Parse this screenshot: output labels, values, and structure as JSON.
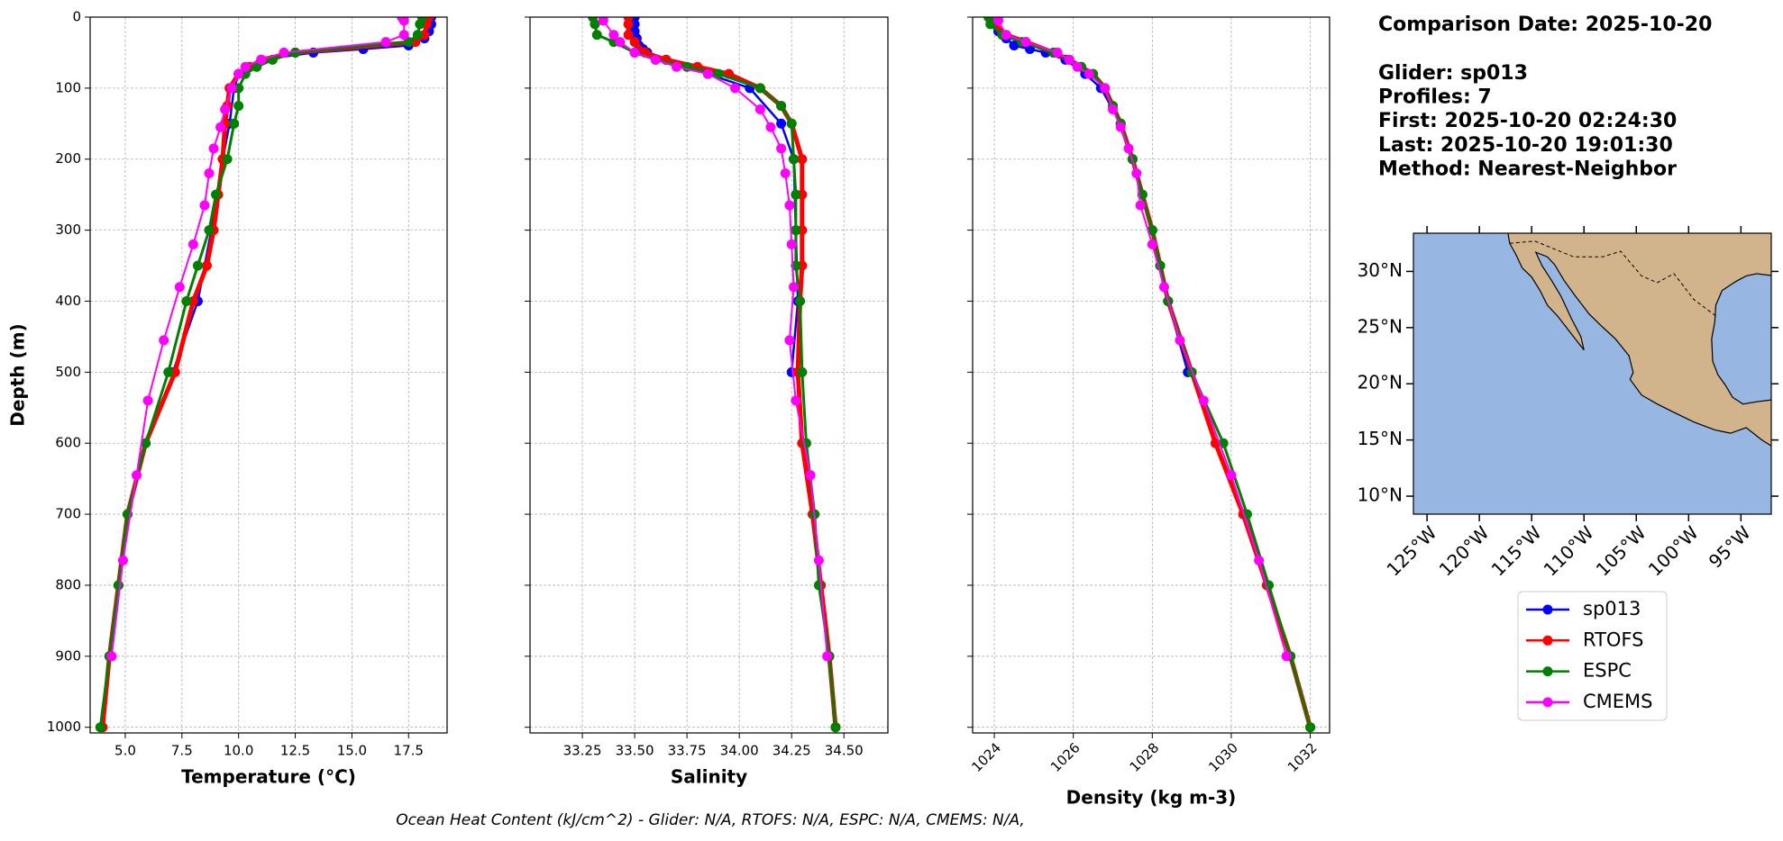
{
  "chart_data": [
    {
      "type": "line",
      "xlabel": "Temperature (°C)",
      "ylabel": "Depth (m)",
      "xlim": [
        3.45,
        19.2
      ],
      "ylim": [
        1008,
        0
      ],
      "grid": true,
      "xticks": [
        {
          "value": 5,
          "label": "5.0"
        },
        7.5,
        {
          "value": 10,
          "label": "10.0"
        },
        12.5,
        {
          "value": 15,
          "label": "15.0"
        },
        17.5
      ],
      "yticks": [
        0,
        100,
        200,
        300,
        400,
        500,
        600,
        700,
        800,
        900,
        1000
      ],
      "series": [
        {
          "name": "sp013",
          "color": "#0000ff",
          "depth": [
            0,
            10,
            20,
            30,
            40,
            45,
            50,
            60,
            80,
            100,
            150,
            200,
            300,
            400,
            500
          ],
          "values": [
            18.5,
            18.5,
            18.4,
            18.2,
            17.5,
            15.5,
            13.3,
            11.0,
            10.0,
            9.8,
            9.6,
            9.3,
            8.8,
            8.2,
            7.1
          ]
        },
        {
          "name": "RTOFS",
          "color": "#ff0000",
          "depth": [
            0,
            10,
            25,
            35,
            50,
            60,
            70,
            80,
            100,
            125,
            150,
            200,
            250,
            300,
            350,
            400,
            500,
            600,
            700,
            800,
            900,
            1000
          ],
          "values": [
            18.4,
            18.3,
            18.2,
            17.8,
            12.5,
            11.0,
            10.5,
            10.0,
            9.6,
            9.5,
            9.4,
            9.3,
            9.1,
            8.9,
            8.6,
            8.0,
            7.2,
            5.9,
            5.1,
            4.7,
            4.3,
            4.0
          ]
        },
        {
          "name": "ESPC",
          "color": "#008000",
          "depth": [
            0,
            10,
            25,
            35,
            50,
            60,
            70,
            80,
            100,
            125,
            150,
            200,
            250,
            300,
            350,
            400,
            500,
            600,
            700,
            800,
            900,
            1000
          ],
          "values": [
            18.1,
            18.0,
            17.9,
            17.5,
            12.5,
            11.5,
            10.8,
            10.3,
            10.0,
            10.0,
            9.8,
            9.5,
            9.0,
            8.7,
            8.2,
            7.7,
            6.9,
            5.9,
            5.1,
            4.7,
            4.3,
            3.9
          ]
        },
        {
          "name": "CMEMS",
          "color": "#ff00ff",
          "depth": [
            0,
            5,
            25,
            35,
            50,
            60,
            70,
            80,
            100,
            130,
            155,
            185,
            220,
            265,
            320,
            380,
            455,
            540,
            645,
            765,
            900
          ],
          "values": [
            17.2,
            17.3,
            17.3,
            16.5,
            12.0,
            11.0,
            10.3,
            10.0,
            9.7,
            9.4,
            9.2,
            8.9,
            8.7,
            8.5,
            8.0,
            7.4,
            6.7,
            6.0,
            5.5,
            4.9,
            4.4
          ]
        }
      ]
    },
    {
      "type": "line",
      "xlabel": "Salinity",
      "xlim": [
        33.0,
        34.71
      ],
      "ylim": [
        1008,
        0
      ],
      "grid": true,
      "xticks": [
        33.25,
        {
          "value": 33.5,
          "label": "33.50"
        },
        33.75,
        {
          "value": 34,
          "label": "34.00"
        },
        34.25,
        {
          "value": 34.5,
          "label": "34.50"
        }
      ],
      "series": [
        {
          "color": "#0000ff",
          "depth": [
            0,
            10,
            20,
            30,
            40,
            45,
            50,
            60,
            80,
            100,
            150,
            200,
            300,
            400,
            500
          ],
          "values": [
            33.5,
            33.5,
            33.5,
            33.51,
            33.52,
            33.54,
            33.56,
            33.65,
            33.85,
            34.05,
            34.2,
            34.26,
            34.27,
            34.28,
            34.25
          ]
        },
        {
          "color": "#ff0000",
          "depth": [
            0,
            10,
            25,
            35,
            50,
            60,
            70,
            80,
            100,
            125,
            150,
            200,
            250,
            300,
            350,
            400,
            500,
            600,
            700,
            800,
            900,
            1000
          ],
          "values": [
            33.47,
            33.47,
            33.47,
            33.5,
            33.55,
            33.65,
            33.8,
            33.95,
            34.1,
            34.2,
            34.25,
            34.3,
            34.3,
            34.3,
            34.3,
            34.29,
            34.28,
            34.3,
            34.35,
            34.39,
            34.43,
            34.46
          ]
        },
        {
          "color": "#008000",
          "depth": [
            0,
            10,
            25,
            35,
            50,
            60,
            70,
            80,
            100,
            125,
            150,
            200,
            250,
            300,
            350,
            400,
            500,
            600,
            700,
            800,
            900,
            1000
          ],
          "values": [
            33.3,
            33.31,
            33.32,
            33.4,
            33.5,
            33.6,
            33.75,
            33.9,
            34.1,
            34.2,
            34.25,
            34.26,
            34.27,
            34.27,
            34.27,
            34.29,
            34.3,
            34.32,
            34.36,
            34.38,
            34.43,
            34.46
          ]
        },
        {
          "color": "#ff00ff",
          "depth": [
            0,
            5,
            25,
            35,
            50,
            60,
            70,
            80,
            100,
            130,
            155,
            185,
            220,
            265,
            320,
            380,
            455,
            540,
            645,
            765,
            900
          ],
          "values": [
            33.35,
            33.35,
            33.4,
            33.43,
            33.5,
            33.6,
            33.7,
            33.85,
            33.98,
            34.1,
            34.15,
            34.2,
            34.22,
            34.24,
            34.25,
            34.26,
            34.24,
            34.27,
            34.34,
            34.38,
            34.42
          ]
        }
      ]
    },
    {
      "type": "line",
      "xlabel": "Density (kg m-3)",
      "xlim": [
        1023.45,
        1032.49
      ],
      "ylim": [
        1008,
        0
      ],
      "grid": true,
      "xtick_rotation": 45,
      "xticks": [
        1024,
        1026,
        1028,
        1030,
        1032
      ],
      "series": [
        {
          "color": "#0000ff",
          "depth": [
            0,
            10,
            20,
            30,
            40,
            45,
            50,
            60,
            80,
            100,
            150,
            200,
            300,
            400,
            500
          ],
          "values": [
            1024.0,
            1024.0,
            1024.1,
            1024.3,
            1024.5,
            1024.9,
            1025.3,
            1025.8,
            1026.3,
            1026.7,
            1027.2,
            1027.5,
            1028.0,
            1028.4,
            1028.9
          ]
        },
        {
          "color": "#ff0000",
          "depth": [
            0,
            10,
            25,
            35,
            50,
            60,
            70,
            80,
            100,
            125,
            150,
            200,
            250,
            300,
            350,
            400,
            500,
            600,
            700,
            800,
            900,
            1000
          ],
          "values": [
            1023.95,
            1024.0,
            1024.3,
            1024.8,
            1025.5,
            1025.9,
            1026.2,
            1026.5,
            1026.8,
            1027.0,
            1027.2,
            1027.5,
            1027.75,
            1028.0,
            1028.2,
            1028.4,
            1029.0,
            1029.6,
            1030.3,
            1030.9,
            1031.5,
            1032.0
          ]
        },
        {
          "color": "#008000",
          "depth": [
            0,
            10,
            25,
            35,
            50,
            60,
            70,
            80,
            100,
            125,
            150,
            200,
            250,
            300,
            350,
            400,
            500,
            600,
            700,
            800,
            900,
            1000
          ],
          "values": [
            1023.85,
            1023.9,
            1024.2,
            1024.7,
            1025.5,
            1025.9,
            1026.2,
            1026.5,
            1026.8,
            1027.0,
            1027.2,
            1027.5,
            1027.75,
            1028.0,
            1028.2,
            1028.4,
            1029.0,
            1029.8,
            1030.4,
            1030.95,
            1031.5,
            1032.0
          ]
        },
        {
          "color": "#ff00ff",
          "depth": [
            0,
            5,
            25,
            35,
            50,
            60,
            70,
            80,
            100,
            130,
            155,
            185,
            220,
            265,
            320,
            380,
            455,
            540,
            645,
            765,
            900
          ],
          "values": [
            1024.1,
            1024.1,
            1024.3,
            1024.8,
            1025.6,
            1025.9,
            1026.1,
            1026.4,
            1026.8,
            1027.0,
            1027.2,
            1027.4,
            1027.6,
            1027.7,
            1028.0,
            1028.3,
            1028.7,
            1029.3,
            1030.0,
            1030.7,
            1031.4
          ]
        }
      ]
    },
    {
      "type": "map",
      "xlim": [
        -126.3,
        -92.1
      ],
      "ylim": [
        8.4,
        33.4
      ],
      "xtick_rotation": 45,
      "ocean_color": "#97b6e1",
      "land_color": "#d2b48c",
      "xticks": [
        {
          "value": -125,
          "label": "125°W"
        },
        {
          "value": -120,
          "label": "120°W"
        },
        {
          "value": -115,
          "label": "115°W"
        },
        {
          "value": -110,
          "label": "110°W"
        },
        {
          "value": -105,
          "label": "105°W"
        },
        {
          "value": -100,
          "label": "100°W"
        },
        {
          "value": -95,
          "label": "95°W"
        }
      ],
      "yticks": [
        {
          "value": 10,
          "label": "10°N"
        },
        {
          "value": 15,
          "label": "15°N"
        },
        {
          "value": 20,
          "label": "20°N"
        },
        {
          "value": 25,
          "label": "25°N"
        },
        {
          "value": 30,
          "label": "30°N"
        }
      ]
    }
  ],
  "info": {
    "title": "Comparison Date: 2025-10-20",
    "lines": [
      "Glider: sp013",
      "Profiles: 7",
      "First: 2025-10-20 02:24:30",
      "Last: 2025-10-20 19:01:30",
      "Method: Nearest-Neighbor"
    ]
  },
  "footer": "Ocean Heat Content (kJ/cm^2) - Glider: N/A,  RTOFS: N/A,  ESPC: N/A,  CMEMS: N/A,"
}
